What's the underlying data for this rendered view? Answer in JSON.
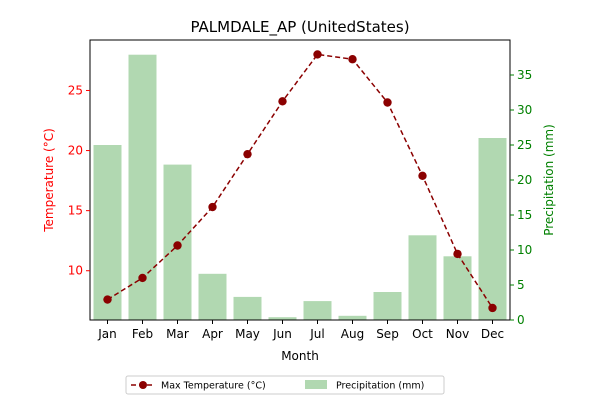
{
  "chart_data": {
    "type": "bar+line",
    "title": "PALMDALE_AP (UnitedStates)",
    "xlabel": "Month",
    "ylabel_left": "Temperature (°C)",
    "ylabel_right": "Precipitation (mm)",
    "categories": [
      "Jan",
      "Feb",
      "Mar",
      "Apr",
      "May",
      "Jun",
      "Jul",
      "Aug",
      "Sep",
      "Oct",
      "Nov",
      "Dec"
    ],
    "ylim_left": [
      5.9,
      29.2
    ],
    "ylim_right": [
      0,
      40
    ],
    "yticks_left": [
      10,
      15,
      20,
      25
    ],
    "yticks_right": [
      0,
      5,
      10,
      15,
      20,
      25,
      30,
      35
    ],
    "grid": false,
    "legend_placement": "bottom-center",
    "series": [
      {
        "name": "Max Temperature (°C)",
        "type": "line",
        "axis": "left",
        "color": "#8b0000",
        "values": [
          7.6,
          9.4,
          12.1,
          15.3,
          19.7,
          24.1,
          28.0,
          27.6,
          24.0,
          17.9,
          11.4,
          6.9
        ]
      },
      {
        "name": "Precipitation (mm)",
        "type": "bar",
        "axis": "right",
        "color": "#b1d8b1",
        "values": [
          25.0,
          37.9,
          22.2,
          6.6,
          3.3,
          0.4,
          2.7,
          0.6,
          4.0,
          12.1,
          9.1,
          26.0
        ]
      }
    ],
    "colors": {
      "left_axis": "#ff0000",
      "right_axis": "#008000"
    }
  }
}
